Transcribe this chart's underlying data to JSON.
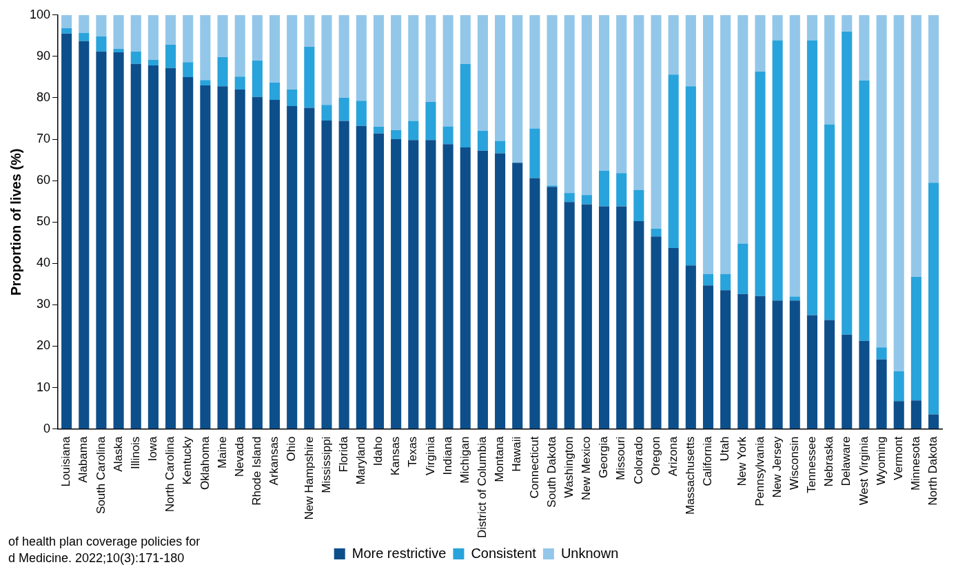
{
  "chart_data": {
    "type": "bar",
    "stacked": true,
    "ylabel": "Proportion of lives (%)",
    "ylim": [
      0,
      100
    ],
    "yticks": [
      0,
      10,
      20,
      30,
      40,
      50,
      60,
      70,
      80,
      90,
      100
    ],
    "grid": false,
    "legend": "bottom",
    "categories": [
      "Louisiana",
      "Alabama",
      "South Carolina",
      "Alaska",
      "Illinois",
      "Iowa",
      "North Carolina",
      "Kentucky",
      "Oklahoma",
      "Maine",
      "Nevada",
      "Rhode Island",
      "Arkansas",
      "Ohio",
      "New Hampshire",
      "Mississippi",
      "Florida",
      "Maryland",
      "Idaho",
      "Kansas",
      "Texas",
      "Virginia",
      "Indiana",
      "Michigan",
      "District of Columbia",
      "Montana",
      "Hawaii",
      "Connecticut",
      "South Dakota",
      "Washington",
      "New Mexico",
      "Georgia",
      "Missouri",
      "Colorado",
      "Oregon",
      "Arizona",
      "Massachusetts",
      "California",
      "Utah",
      "New York",
      "Pennsylvania",
      "New Jersey",
      "Wisconsin",
      "Tennessee",
      "Nebraska",
      "Delaware",
      "West Virginia",
      "Wyoming",
      "Vermont",
      "Minnesota",
      "North Dakota"
    ],
    "series": [
      {
        "name": "More restrictive",
        "color": "#0d4f8b",
        "values": [
          95.5,
          93.7,
          91.2,
          91,
          88.2,
          87.8,
          87.2,
          85,
          83,
          82.8,
          82,
          80.2,
          79.5,
          78,
          77.6,
          74.5,
          74.4,
          73.2,
          71.4,
          70,
          69.8,
          69.8,
          68.8,
          68,
          67.2,
          66.6,
          64.3,
          60.6,
          58.5,
          54.8,
          54.3,
          53.8,
          53.8,
          50.2,
          46.5,
          43.7,
          39.5,
          34.7,
          33.5,
          32.6,
          32.1,
          31,
          31,
          27.5,
          26.3,
          22.8,
          21.3,
          16.8,
          6.7,
          6.9,
          3.5
        ]
      },
      {
        "name": "Consistent",
        "color": "#29a3db",
        "values": [
          1.3,
          2,
          3.6,
          0.8,
          3,
          1.4,
          5.6,
          3.6,
          1.3,
          7,
          3.1,
          8.8,
          4.2,
          4,
          14.7,
          3.8,
          5.6,
          6.1,
          1.6,
          2.2,
          4.6,
          9.2,
          4.3,
          20.2,
          4.8,
          3,
          0,
          12,
          0.3,
          2.2,
          2.2,
          8.6,
          8,
          7.5,
          1.9,
          41.9,
          43.3,
          2.7,
          3.9,
          12.2,
          54.2,
          62.9,
          1,
          66.4,
          47.3,
          73.2,
          62.9,
          2.9,
          7.2,
          29.8,
          56
        ]
      },
      {
        "name": "Unknown",
        "color": "#93c7e9",
        "values": [
          3.2,
          4.3,
          5.2,
          8.2,
          8.8,
          10.8,
          7.2,
          11.4,
          15.7,
          10.2,
          14.9,
          11,
          16.3,
          18,
          7.7,
          21.7,
          20,
          20.7,
          27,
          27.8,
          25.6,
          21,
          26.9,
          11.8,
          28,
          30.4,
          35.7,
          27.4,
          41.2,
          43,
          43.5,
          37.6,
          38.2,
          42.3,
          51.6,
          14.4,
          17.2,
          62.6,
          62.6,
          55.2,
          13.7,
          6.1,
          68,
          6.1,
          26.4,
          4,
          15.8,
          80.3,
          86.1,
          63.3,
          40.5
        ]
      }
    ],
    "annotations": [
      "of health plan coverage policies for",
      "d Medicine. 2022;10(3):171-180"
    ]
  }
}
